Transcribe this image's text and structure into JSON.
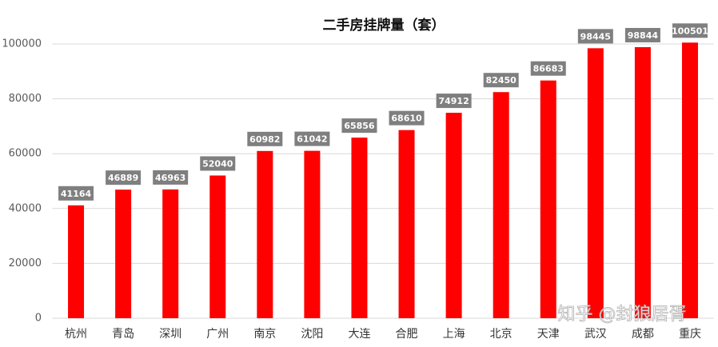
{
  "chart_data": {
    "type": "bar",
    "title": "二手房挂牌量（套）",
    "categories": [
      "杭州",
      "青岛",
      "深圳",
      "广州",
      "南京",
      "沈阳",
      "大连",
      "合肥",
      "上海",
      "北京",
      "天津",
      "武汉",
      "成都",
      "重庆"
    ],
    "values": [
      41164,
      46889,
      46963,
      52040,
      60982,
      61042,
      65856,
      68610,
      74912,
      82450,
      86683,
      98445,
      98844,
      100501
    ],
    "color": "#ff0000",
    "ylim": [
      0,
      110000
    ],
    "yticks": [
      0,
      20000,
      40000,
      60000,
      80000,
      100000
    ],
    "grid": true,
    "watermark": "知乎 @封狼居胥"
  }
}
